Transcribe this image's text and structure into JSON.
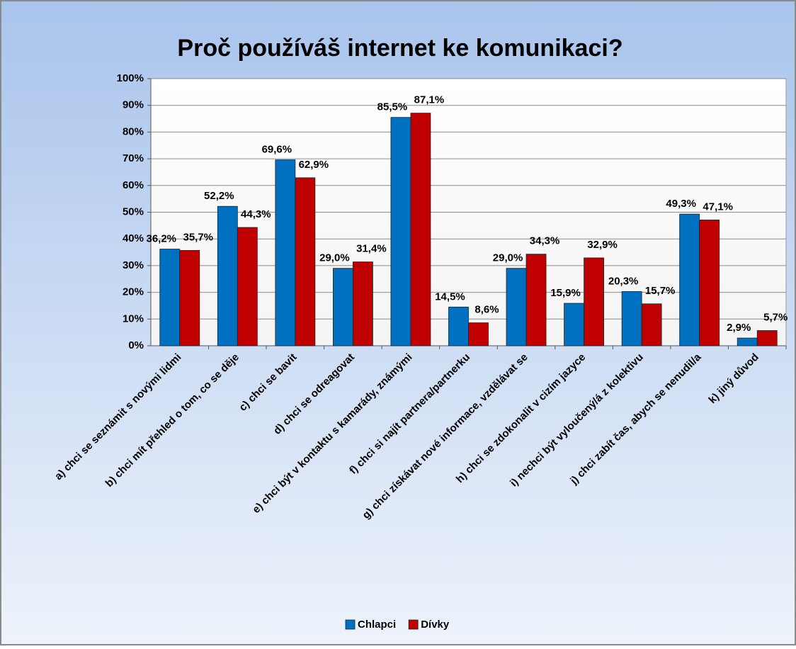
{
  "chart_data": {
    "type": "bar",
    "title": "Proč používáš internet ke komunikaci?",
    "categories": [
      "a) chci se seznámit s novými lidmi",
      "b) chci mít přehled o tom, co se děje",
      "c) chci se bavit",
      "d) chci se odreagovat",
      "e) chci být v kontaktu s kamarády, známými",
      "f) chci si najít partnera/partnerku",
      "g) chci získávat nové informace, vzdělávat se",
      "h) chci se zdokonalit v cizím jazyce",
      "i) nechci být vyloučený/á z kolektivu",
      "j) chci zabít čas, abych se nenudil/a",
      "k) jiný důvod"
    ],
    "series": [
      {
        "name": "Chlapci",
        "color": "#0070c0",
        "values": [
          36.2,
          52.2,
          69.6,
          29.0,
          85.5,
          14.5,
          29.0,
          15.9,
          20.3,
          49.3,
          2.9
        ],
        "value_labels": [
          "36,2%",
          "52,2%",
          "69,6%",
          "29,0%",
          "85,5%",
          "14,5%",
          "29,0%",
          "15,9%",
          "20,3%",
          "49,3%",
          "2,9%"
        ]
      },
      {
        "name": "Dívky",
        "color": "#c00000",
        "values": [
          35.7,
          44.3,
          62.9,
          31.4,
          87.1,
          8.6,
          34.3,
          32.9,
          15.7,
          47.1,
          5.7
        ],
        "value_labels": [
          "35,7%",
          "44,3%",
          "62,9%",
          "31,4%",
          "87,1%",
          "8,6%",
          "34,3%",
          "32,9%",
          "15,7%",
          "47,1%",
          "5,7%"
        ]
      }
    ],
    "ylim": [
      0,
      100
    ],
    "yticks": [
      {
        "value": 0,
        "label": "0%"
      },
      {
        "value": 10,
        "label": "10%"
      },
      {
        "value": 20,
        "label": "20%"
      },
      {
        "value": 30,
        "label": "30%"
      },
      {
        "value": 40,
        "label": "40%"
      },
      {
        "value": 50,
        "label": "50%"
      },
      {
        "value": 60,
        "label": "60%"
      },
      {
        "value": 70,
        "label": "70%"
      },
      {
        "value": 80,
        "label": "80%"
      },
      {
        "value": 90,
        "label": "90%"
      },
      {
        "value": 100,
        "label": "100%"
      }
    ],
    "grid": true,
    "legend": "bottom"
  }
}
